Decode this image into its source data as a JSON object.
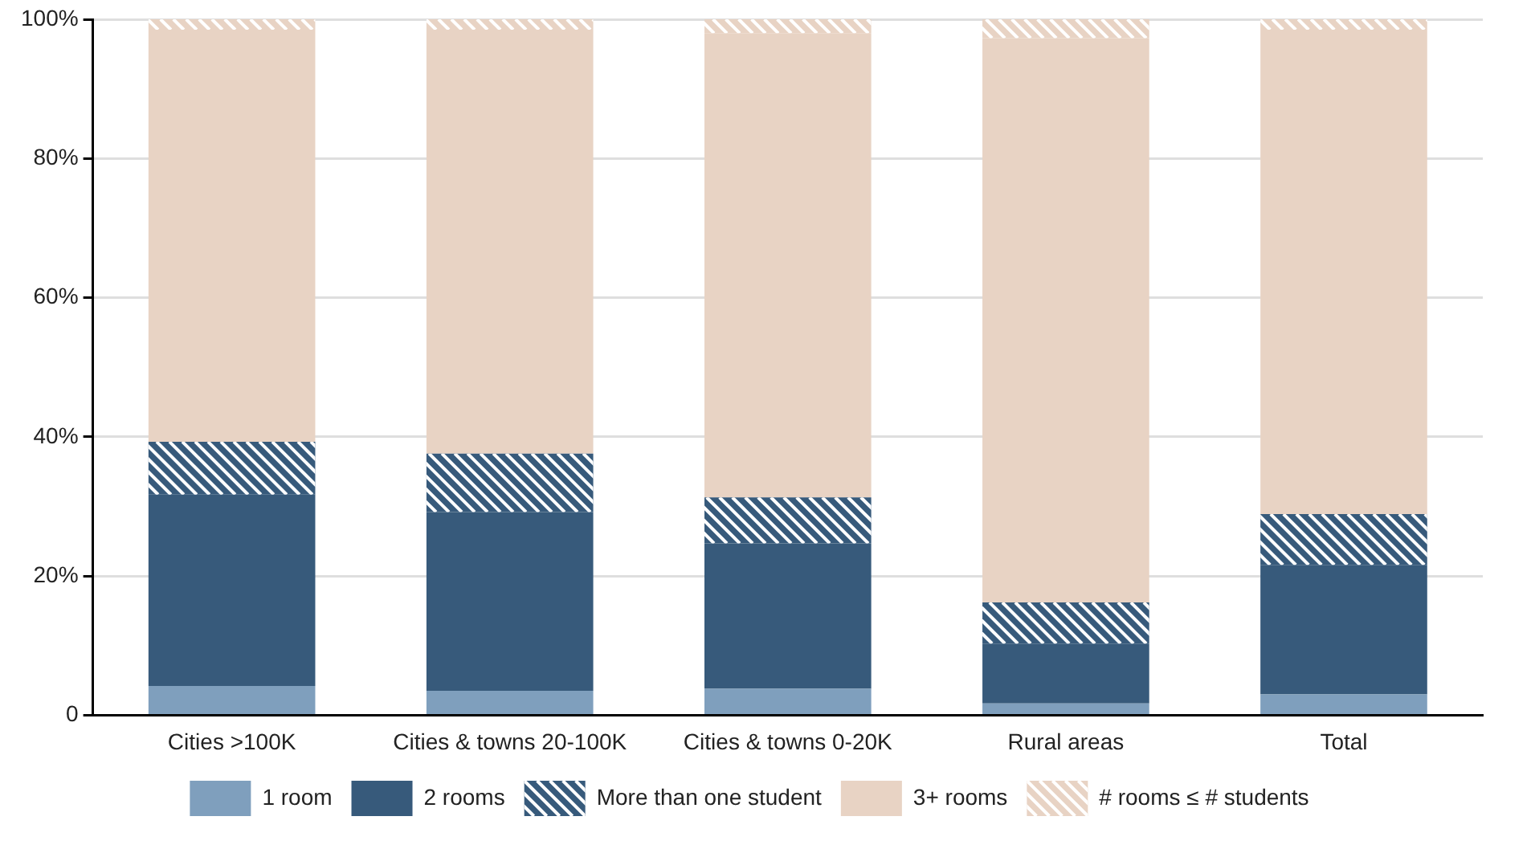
{
  "chart_data": {
    "type": "bar",
    "stacked": true,
    "categories": [
      "Cities >100K",
      "Cities & towns 20-100K",
      "Cities & towns 0-20K",
      "Rural areas",
      "Total"
    ],
    "series": [
      {
        "name": "1 room",
        "color": "#7f9fbd",
        "values": [
          4.2,
          3.5,
          3.8,
          1.7,
          3.0
        ]
      },
      {
        "name": "2 rooms",
        "color": "#375a7b",
        "values": [
          27.5,
          25.7,
          20.9,
          8.6,
          18.6
        ]
      },
      {
        "name": "More than one student",
        "color": "#375a7b",
        "values": [
          7.6,
          8.4,
          6.6,
          5.9,
          7.3
        ]
      },
      {
        "name": "3+ rooms",
        "color": "#e8d3c4",
        "values": [
          59.2,
          60.9,
          66.7,
          81.1,
          69.6
        ]
      },
      {
        "name": "# rooms ≤ # students",
        "color": "#e8d3c4",
        "values": [
          1.5,
          1.5,
          2.0,
          2.7,
          1.5
        ]
      }
    ],
    "ylim": [
      0,
      100
    ],
    "yticks": [
      0,
      {
        "value": 20,
        "label": "20%"
      },
      {
        "value": 40,
        "label": "40%"
      },
      {
        "value": 60,
        "label": "60%"
      },
      {
        "value": 80,
        "label": "80%"
      },
      {
        "value": 100,
        "label": "100%"
      }
    ],
    "grid": "y",
    "legend": "bottom"
  }
}
